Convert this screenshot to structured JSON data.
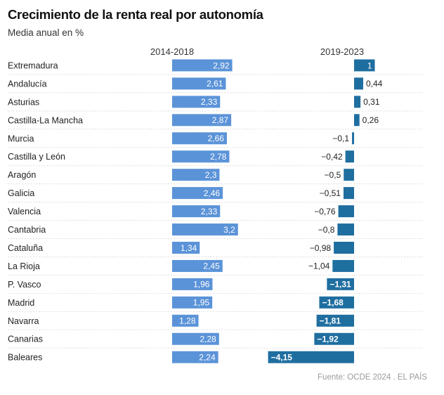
{
  "title": "Crecimiento de la renta real por autonomía",
  "subtitle": "Media anual en %",
  "source": "Fuente: OCDE 2024 . EL PAÍS",
  "colors": {
    "series1": "#5b93d8",
    "series2": "#1f6ea0",
    "gridline": "#dddddd"
  },
  "chart_data": {
    "type": "bar",
    "orientation": "horizontal",
    "categories": [
      "Extremadura",
      "Andalucía",
      "Asturias",
      "Castilla-La Mancha",
      "Murcia",
      "Castilla y León",
      "Aragón",
      "Galicia",
      "Valencia",
      "Cantabria",
      "Cataluña",
      "La Rioja",
      "P. Vasco",
      "Madrid",
      "Navarra",
      "Canarias",
      "Baleares"
    ],
    "series": [
      {
        "name": "2014-2018",
        "values": [
          2.92,
          2.61,
          2.33,
          2.87,
          2.66,
          2.78,
          2.3,
          2.46,
          2.33,
          3.2,
          1.34,
          2.45,
          1.96,
          1.95,
          1.28,
          2.28,
          2.24
        ],
        "labels": [
          "2,92",
          "2,61",
          "2,33",
          "2,87",
          "2,66",
          "2,78",
          "2,3",
          "2,46",
          "2,33",
          "3,2",
          "1,34",
          "2,45",
          "1,96",
          "1,95",
          "1,28",
          "2,28",
          "2,24"
        ]
      },
      {
        "name": "2019-2023",
        "values": [
          1,
          0.44,
          0.31,
          0.26,
          -0.1,
          -0.42,
          -0.5,
          -0.51,
          -0.76,
          -0.8,
          -0.98,
          -1.04,
          -1.31,
          -1.68,
          -1.81,
          -1.92,
          -4.15
        ],
        "labels": [
          "1",
          "0,44",
          "0,31",
          "0,26",
          "−0,1",
          "−0,42",
          "−0,5",
          "−0,51",
          "−0,76",
          "−0,8",
          "−0,98",
          "−1,04",
          "−1,31",
          "−1,68",
          "−1,81",
          "−1,92",
          "−4,15"
        ]
      }
    ]
  }
}
